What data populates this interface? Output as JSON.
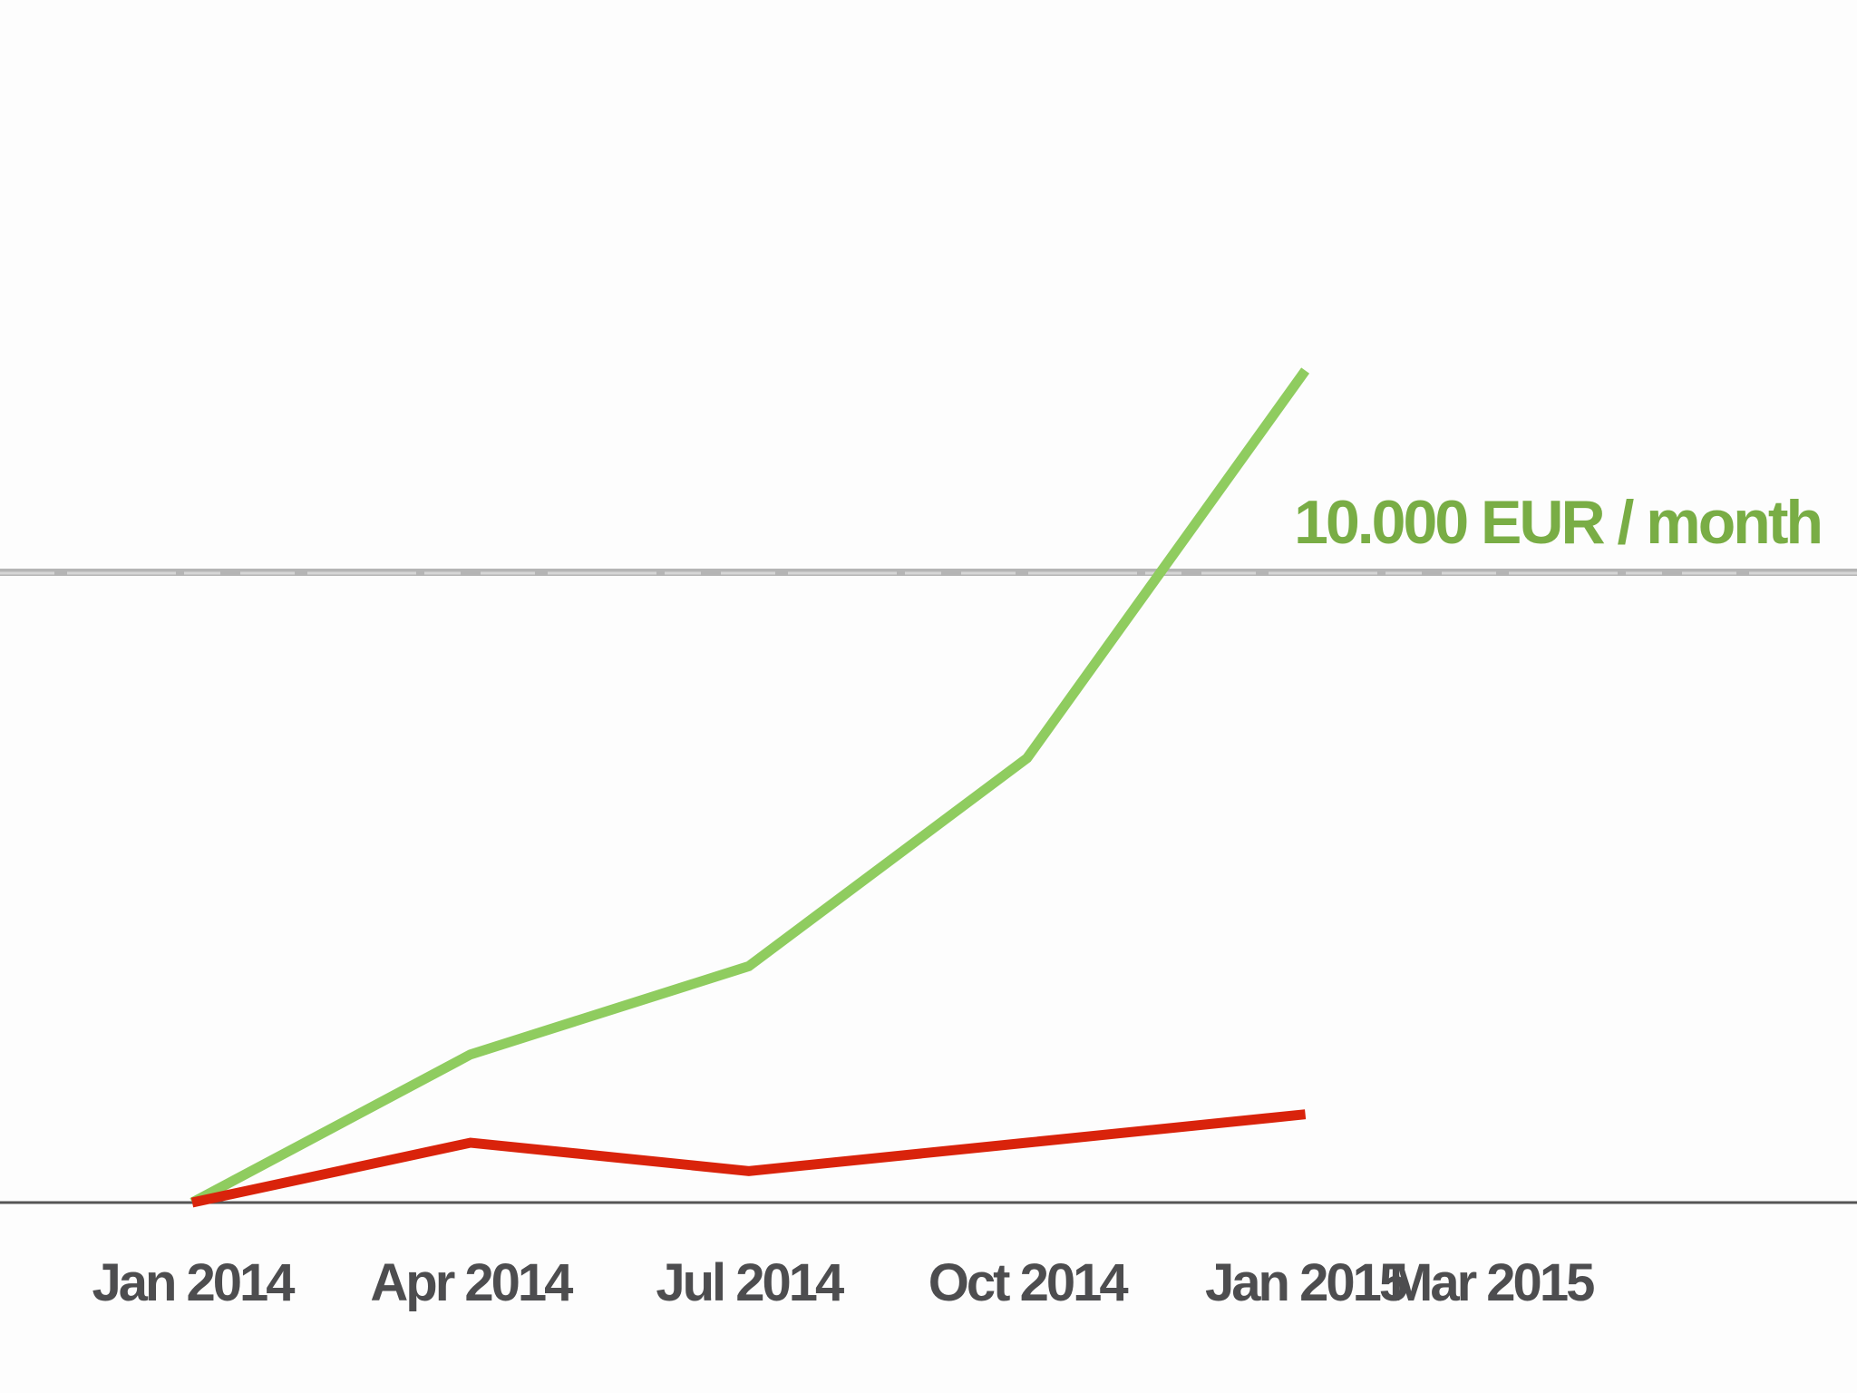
{
  "chart_data": {
    "type": "line",
    "title": "",
    "xlabel": "",
    "ylabel": "",
    "x_ticks": [
      "Jan 2014",
      "Apr 2014",
      "Jul 2014",
      "Oct 2014",
      "Jan 2015",
      "Mar 2015"
    ],
    "x_tick_months": [
      0,
      3,
      6,
      9,
      12,
      14
    ],
    "ylim": [
      0,
      10000
    ],
    "grid": false,
    "reference_line": {
      "value": 10000,
      "label": "10.000 EUR / month",
      "color": "#b5b5b5",
      "label_color": "#79ad45"
    },
    "series": [
      {
        "color": "#8fcc5f",
        "x": [
          "Jan 2014",
          "Apr 2014",
          "Jul 2014",
          "Oct 2014",
          "Jan 2015"
        ],
        "x_months": [
          0,
          3,
          6,
          9,
          12
        ],
        "values": [
          0,
          2350,
          3750,
          7050,
          13200
        ]
      },
      {
        "color": "#d9230b",
        "x": [
          "Jan 2014",
          "Apr 2014",
          "Jul 2014",
          "Oct 2014",
          "Jan 2015"
        ],
        "x_months": [
          0,
          3,
          6,
          9,
          12
        ],
        "values": [
          0,
          950,
          500,
          950,
          1400
        ]
      }
    ],
    "axis_color": "#555555",
    "tick_label_color": "#4d4d4f"
  }
}
